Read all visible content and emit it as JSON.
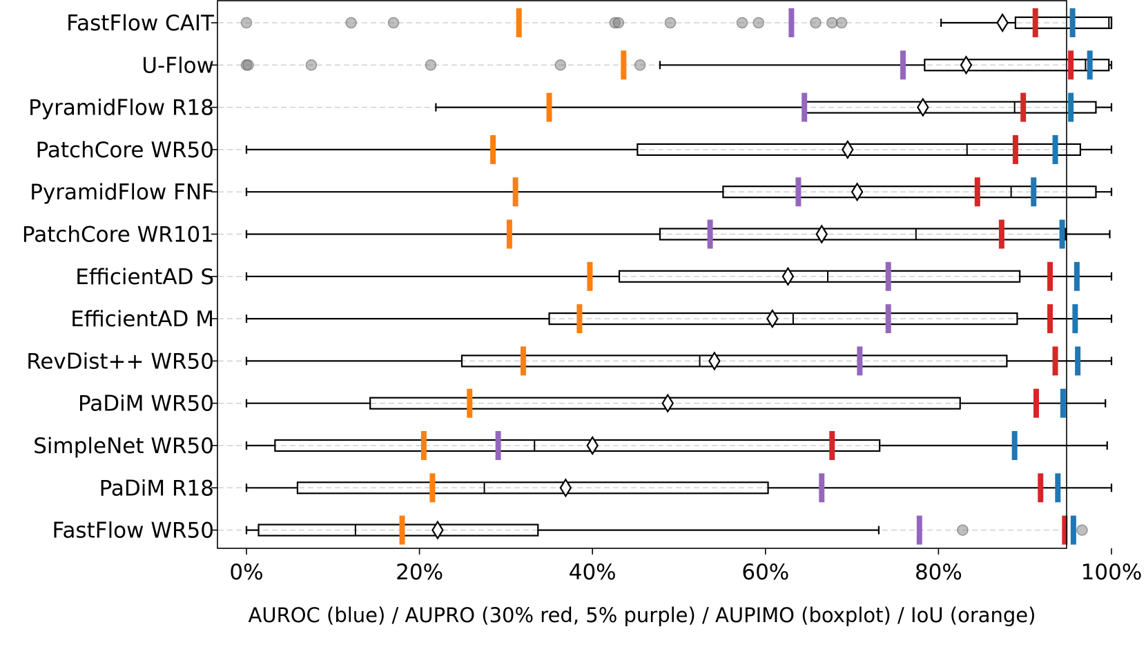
{
  "chart_data": {
    "type": "boxplot",
    "xlabel": "AUROC (blue) / AUPRO (30% red, 5% purple) / AUPIMO (boxplot) / IoU (orange)",
    "xlim": [
      -0.02,
      1.02
    ],
    "xticks": [
      0,
      0.2,
      0.4,
      0.6,
      0.8,
      1.0
    ],
    "xtick_labels": [
      "0%",
      "20%",
      "40%",
      "60%",
      "80%",
      "100%"
    ],
    "grid": "horizontal dashed at each model row",
    "colors": {
      "auroc": "#1f77b4",
      "aupro30": "#d62728",
      "aupro5": "#9467bd",
      "iou": "#ff7f0e",
      "outlier": "#808080"
    },
    "models": [
      {
        "name": "FastFlow CAIT",
        "whisker_low": 0.803,
        "q1": 0.889,
        "median": 0.997,
        "q3": 1.0,
        "whisker_high": 1.0,
        "mean": 0.874,
        "outliers": [
          0.0,
          0.121,
          0.17,
          0.426,
          0.43,
          0.49,
          0.573,
          0.592,
          0.658,
          0.677,
          0.688
        ],
        "auroc": 0.955,
        "aupro30": 0.912,
        "aupro5": 0.63,
        "iou": 0.315
      },
      {
        "name": "U-Flow",
        "whisker_low": 0.478,
        "q1": 0.784,
        "median": 0.97,
        "q3": 0.997,
        "whisker_high": 1.0,
        "mean": 0.832,
        "outliers": [
          0.0,
          0.002,
          0.075,
          0.213,
          0.363,
          0.455
        ],
        "auroc": 0.975,
        "aupro30": 0.953,
        "aupro5": 0.759,
        "iou": 0.436
      },
      {
        "name": "PyramidFlow R18",
        "whisker_low": 0.219,
        "q1": 0.644,
        "median": 0.888,
        "q3": 0.982,
        "whisker_high": 1.0,
        "mean": 0.782,
        "outliers": [],
        "auroc": 0.953,
        "aupro30": 0.898,
        "aupro5": 0.645,
        "iou": 0.35
      },
      {
        "name": "PatchCore WR50",
        "whisker_low": 0.0,
        "q1": 0.452,
        "median": 0.833,
        "q3": 0.964,
        "whisker_high": 1.0,
        "mean": 0.695,
        "outliers": [],
        "auroc": 0.935,
        "aupro30": 0.889,
        "aupro5": null,
        "iou": 0.285
      },
      {
        "name": "PyramidFlow FNF",
        "whisker_low": 0.0,
        "q1": 0.551,
        "median": 0.884,
        "q3": 0.982,
        "whisker_high": 1.0,
        "mean": 0.706,
        "outliers": [],
        "auroc": 0.91,
        "aupro30": 0.845,
        "aupro5": 0.638,
        "iou": 0.311
      },
      {
        "name": "PatchCore WR101",
        "whisker_low": 0.0,
        "q1": 0.478,
        "median": 0.774,
        "q3": 0.947,
        "whisker_high": 0.998,
        "mean": 0.665,
        "outliers": [],
        "auroc": 0.943,
        "aupro30": 0.873,
        "aupro5": 0.536,
        "iou": 0.304
      },
      {
        "name": "EfficientAD S",
        "whisker_low": 0.0,
        "q1": 0.431,
        "median": 0.672,
        "q3": 0.894,
        "whisker_high": 1.0,
        "mean": 0.626,
        "outliers": [],
        "auroc": 0.96,
        "aupro30": 0.929,
        "aupro5": 0.742,
        "iou": 0.397
      },
      {
        "name": "EfficientAD M",
        "whisker_low": 0.0,
        "q1": 0.35,
        "median": 0.632,
        "q3": 0.891,
        "whisker_high": 1.0,
        "mean": 0.608,
        "outliers": [],
        "auroc": 0.958,
        "aupro30": 0.929,
        "aupro5": 0.742,
        "iou": 0.385
      },
      {
        "name": "RevDist++ WR50",
        "whisker_low": 0.0,
        "q1": 0.249,
        "median": 0.524,
        "q3": 0.879,
        "whisker_high": 1.0,
        "mean": 0.541,
        "outliers": [],
        "auroc": 0.961,
        "aupro30": 0.935,
        "aupro5": 0.709,
        "iou": 0.32
      },
      {
        "name": "PaDiM WR50",
        "whisker_low": 0.0,
        "q1": 0.143,
        "median": 0.487,
        "q3": 0.825,
        "whisker_high": 0.993,
        "mean": 0.487,
        "outliers": [],
        "auroc": 0.944,
        "aupro30": 0.913,
        "aupro5": null,
        "iou": 0.258
      },
      {
        "name": "SimpleNet WR50",
        "whisker_low": 0.0,
        "q1": 0.033,
        "median": 0.333,
        "q3": 0.732,
        "whisker_high": 0.995,
        "mean": 0.4,
        "outliers": [],
        "auroc": 0.888,
        "aupro30": 0.677,
        "aupro5": 0.291,
        "iou": 0.205
      },
      {
        "name": "PaDiM R18",
        "whisker_low": 0.0,
        "q1": 0.059,
        "median": 0.275,
        "q3": 0.603,
        "whisker_high": 1.0,
        "mean": 0.369,
        "outliers": [],
        "auroc": 0.938,
        "aupro30": 0.918,
        "aupro5": 0.665,
        "iou": 0.215
      },
      {
        "name": "FastFlow WR50",
        "whisker_low": 0.0,
        "q1": 0.014,
        "median": 0.126,
        "q3": 0.337,
        "whisker_high": 0.731,
        "mean": 0.221,
        "outliers": [
          0.828,
          0.966
        ],
        "auroc": 0.956,
        "aupro30": 0.946,
        "aupro5": 0.778,
        "iou": 0.18
      }
    ]
  }
}
